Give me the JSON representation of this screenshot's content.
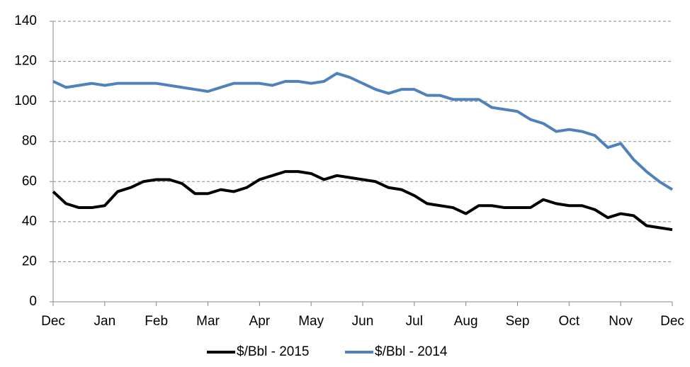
{
  "chart_data": {
    "type": "line",
    "categories": [
      "Dec",
      null,
      null,
      null,
      "Jan",
      null,
      null,
      null,
      "Feb",
      null,
      null,
      null,
      "Mar",
      null,
      null,
      null,
      "Apr",
      null,
      null,
      null,
      "May",
      null,
      null,
      null,
      "Jun",
      null,
      null,
      null,
      "Jul",
      null,
      null,
      null,
      "Aug",
      null,
      null,
      null,
      "Sep",
      null,
      null,
      null,
      "Oct",
      null,
      null,
      null,
      "Nov",
      null,
      null,
      null,
      "Dec"
    ],
    "series": [
      {
        "name": "$/Bbl - 2015",
        "color": "#000000",
        "values": [
          55,
          49,
          47,
          47,
          48,
          55,
          57,
          60,
          61,
          61,
          59,
          54,
          54,
          56,
          55,
          57,
          61,
          63,
          65,
          65,
          64,
          61,
          63,
          62,
          61,
          60,
          57,
          56,
          53,
          49,
          48,
          47,
          44,
          48,
          48,
          47,
          47,
          47,
          51,
          49,
          48,
          48,
          46,
          42,
          44,
          43,
          38,
          37,
          36
        ]
      },
      {
        "name": "$/Bbl - 2014",
        "color": "#4f81bd",
        "values": [
          110,
          107,
          108,
          109,
          108,
          109,
          109,
          109,
          109,
          108,
          107,
          106,
          105,
          107,
          109,
          109,
          109,
          108,
          110,
          110,
          109,
          110,
          114,
          112,
          109,
          106,
          104,
          106,
          106,
          103,
          103,
          101,
          101,
          101,
          97,
          96,
          95,
          91,
          89,
          85,
          86,
          85,
          83,
          77,
          79,
          71,
          65,
          60,
          56
        ]
      }
    ],
    "ylim": [
      0,
      140
    ],
    "yticks": [
      0,
      20,
      40,
      60,
      80,
      100,
      120,
      140
    ],
    "grid": true,
    "legend": "bottom"
  }
}
